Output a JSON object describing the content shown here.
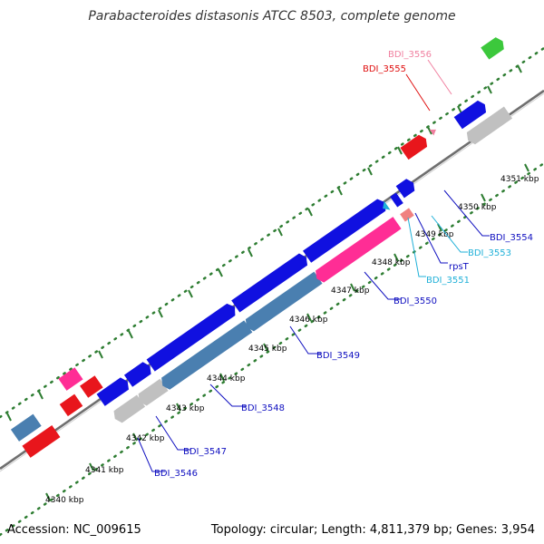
{
  "title": "Parabacteroides distasonis ATCC 8503, complete genome",
  "footer": {
    "accession": "Accession: NC_009615",
    "stats": "Topology: circular; Length: 4,811,379 bp; Genes: 3,954"
  },
  "colors": {
    "background": "#ffffff",
    "backbone": "#888888",
    "forward_cds": "#1010e0",
    "reverse_cds": "#4a7fb0",
    "pseudo": "#c0c0c0",
    "red_gene": "#e8161c",
    "magenta_gene": "#ff2d95",
    "pink_gene": "#f08080",
    "cyan_gene": "#1fb0d8",
    "green_gene": "#3cc83c",
    "tick": "#2e7d32"
  },
  "ticks": [
    "4340 kbp",
    "4341 kbp",
    "4342 kbp",
    "4343 kbp",
    "4344 kbp",
    "4345 kbp",
    "4346 kbp",
    "4347 kbp",
    "4348 kbp",
    "4349 kbp",
    "4350 kbp",
    "4351 kbp"
  ],
  "gene_labels": [
    {
      "name": "BDI_3546",
      "color": "#1010c0"
    },
    {
      "name": "BDI_3547",
      "color": "#1010c0"
    },
    {
      "name": "BDI_3548",
      "color": "#1010c0"
    },
    {
      "name": "BDI_3549",
      "color": "#1010c0"
    },
    {
      "name": "BDI_3550",
      "color": "#1010c0"
    },
    {
      "name": "BDI_3551",
      "color": "#1fb0d8"
    },
    {
      "name": "rpsT",
      "color": "#1010c0"
    },
    {
      "name": "BDI_3553",
      "color": "#1fb0d8"
    },
    {
      "name": "BDI_3554",
      "color": "#1010c0"
    },
    {
      "name": "BDI_3555",
      "color": "#e01010"
    },
    {
      "name": "BDI_3556",
      "color": "#f080a0"
    }
  ]
}
